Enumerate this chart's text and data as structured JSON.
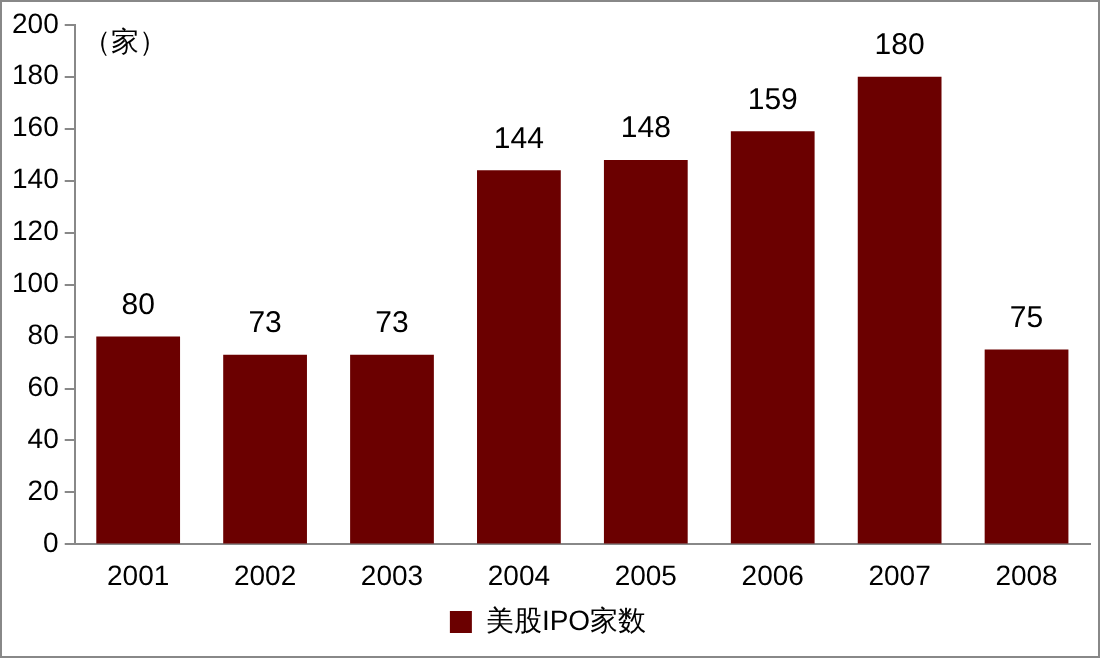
{
  "chart_data": {
    "type": "bar",
    "ylabel": "（家）",
    "categories": [
      "2001",
      "2002",
      "2003",
      "2004",
      "2005",
      "2006",
      "2007",
      "2008"
    ],
    "series": [
      {
        "name": "美股IPO家数",
        "color": "#6b0000",
        "values": [
          80,
          73,
          73,
          144,
          148,
          159,
          180,
          75
        ]
      }
    ],
    "ylim": [
      0,
      200
    ],
    "yticks": [
      0,
      20,
      40,
      60,
      80,
      100,
      120,
      140,
      160,
      180,
      200
    ],
    "grid": false,
    "legend": "bottom",
    "data_labels": true
  }
}
